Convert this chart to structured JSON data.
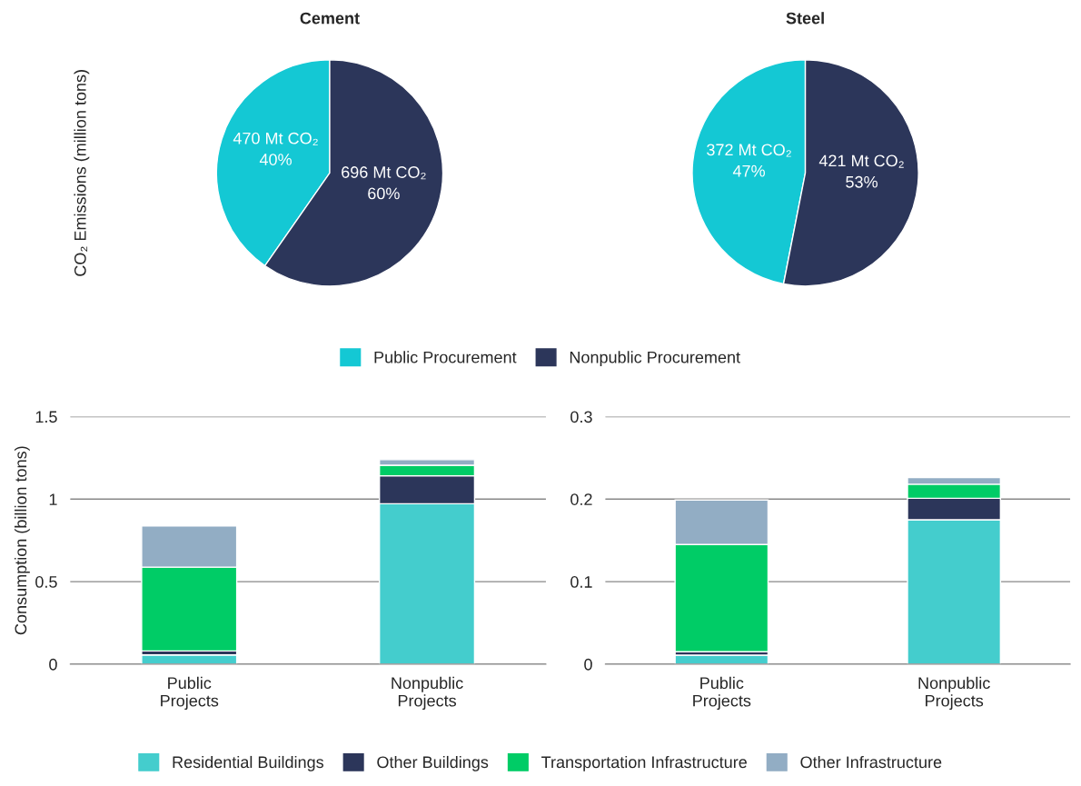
{
  "chart_data": [
    {
      "type": "pie",
      "title": "Cement",
      "ylabel": "CO₂ Emissions (million tons)",
      "categories": [
        "Public Procurement",
        "Nonpublic Procurement"
      ],
      "values": [
        470,
        696
      ],
      "colors": [
        "#14c8d4",
        "#2c365a"
      ],
      "value_labels": [
        "470 Mt CO₂\n40%",
        "696 Mt CO₂\n60%"
      ],
      "legend": "bottom"
    },
    {
      "type": "pie",
      "title": "Steel",
      "categories": [
        null,
        null
      ],
      "values": [
        372,
        421
      ],
      "colors": [
        "#14c8d4",
        "#2c365a"
      ],
      "value_labels": [
        "372 Mt CO₂\n47%",
        "421 Mt CO₂\n53%"
      ]
    },
    {
      "type": "bar",
      "stacked": true,
      "ylabel": "Consumption (billion tons)",
      "categories": [
        "Public\nProjects",
        "Nonpublic\nProjects"
      ],
      "ylim": [
        0,
        1.5
      ],
      "yticks": [
        0,
        0.5,
        1,
        1.5
      ],
      "grid": "y",
      "legend": "bottom",
      "series": [
        {
          "name": "Residential Buildings",
          "color": "#44cdcd",
          "values": [
            0.056,
            0.972
          ]
        },
        {
          "name": "Other Buildings",
          "color": "#2c365a",
          "values": [
            0.024,
            0.169
          ]
        },
        {
          "name": "Transportation Infrastructure",
          "color": "#00cc66",
          "values": [
            0.508,
            0.064
          ]
        },
        {
          "name": "Other Infrastructure",
          "color": "#92adc4",
          "values": [
            0.249,
            0.034
          ]
        }
      ]
    },
    {
      "type": "bar",
      "stacked": true,
      "categories": [
        "Public\nProjects",
        "Nonpublic\nProjects"
      ],
      "ylim": [
        0,
        0.3
      ],
      "yticks": [
        0,
        0.1,
        0.2,
        0.3
      ],
      "grid": "y",
      "series": [
        {
          "color": "#44cdcd",
          "values": [
            0.011,
            0.175
          ]
        },
        {
          "color": "#2c365a",
          "values": [
            0.004,
            0.026
          ]
        },
        {
          "color": "#00cc66",
          "values": [
            0.13,
            0.017
          ]
        },
        {
          "color": "#92adc4",
          "values": [
            0.054,
            0.008
          ]
        }
      ]
    }
  ]
}
